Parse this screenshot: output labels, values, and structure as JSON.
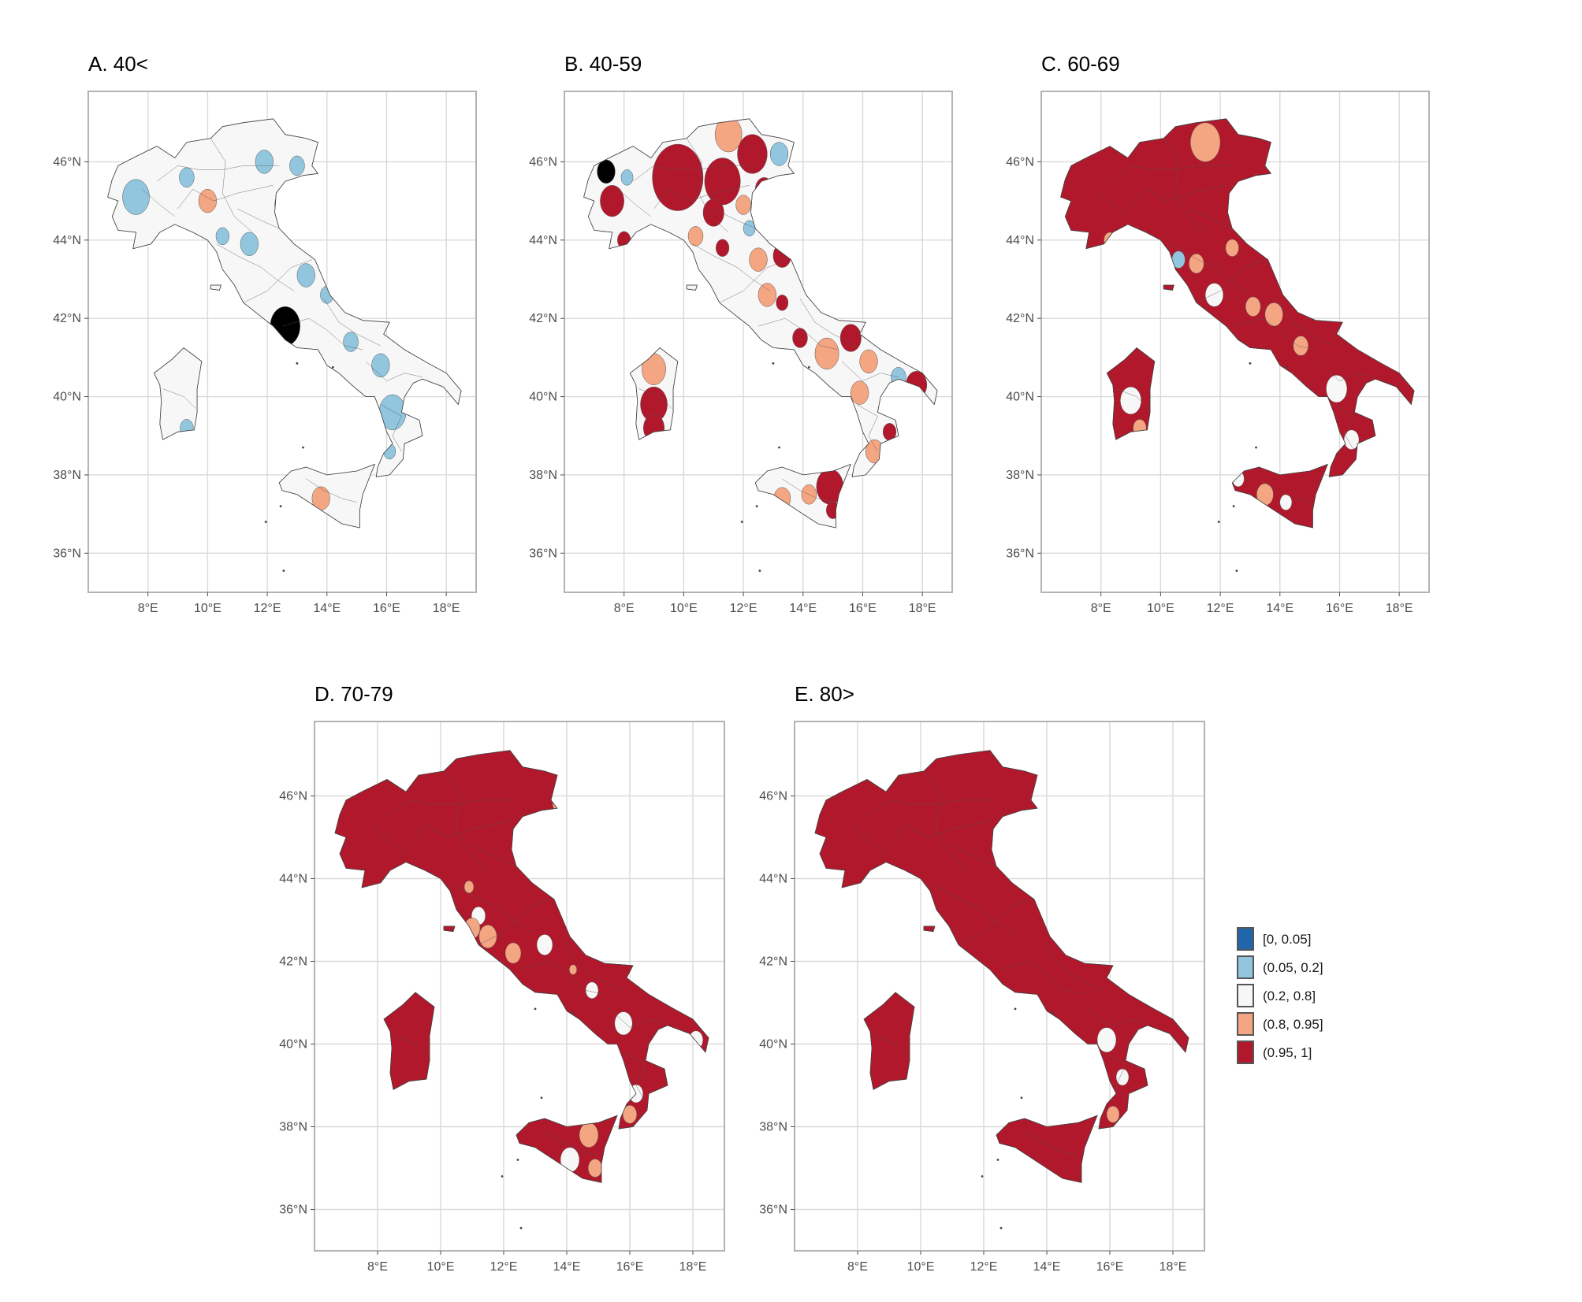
{
  "figure": {
    "panels": [
      {
        "id": "A",
        "title": "A. 40<",
        "base_class": "(0.2, 0.8]",
        "patches": [
          {
            "class": "(0.05, 0.2]",
            "lon": 7.6,
            "lat": 45.1,
            "r": 0.45
          },
          {
            "class": "(0.05, 0.2]",
            "lon": 9.3,
            "lat": 45.6,
            "r": 0.25
          },
          {
            "class": "(0.8, 0.95]",
            "lon": 10.0,
            "lat": 45.0,
            "r": 0.3
          },
          {
            "class": "(0.05, 0.2]",
            "lon": 11.9,
            "lat": 46.0,
            "r": 0.3
          },
          {
            "class": "(0.05, 0.2]",
            "lon": 13.0,
            "lat": 45.9,
            "r": 0.25
          },
          {
            "class": "(0.05, 0.2]",
            "lon": 12.6,
            "lat": 44.9,
            "r": 0.35
          },
          {
            "class": "(0.05, 0.2]",
            "lon": 10.5,
            "lat": 44.1,
            "r": 0.22
          },
          {
            "class": "(0.05, 0.2]",
            "lon": 11.4,
            "lat": 43.9,
            "r": 0.3
          },
          {
            "class": "(0.05, 0.2]",
            "lon": 13.3,
            "lat": 43.1,
            "r": 0.3
          },
          {
            "class": "(0.05, 0.2]",
            "lon": 14.0,
            "lat": 42.6,
            "r": 0.22
          },
          {
            "class": "(0, 0.05]",
            "lon": 12.6,
            "lat": 41.8,
            "r": 0.5
          },
          {
            "class": "(0.05, 0.2]",
            "lon": 14.8,
            "lat": 41.4,
            "r": 0.25
          },
          {
            "class": "(0.05, 0.2]",
            "lon": 15.8,
            "lat": 40.8,
            "r": 0.3
          },
          {
            "class": "(0.05, 0.2]",
            "lon": 16.2,
            "lat": 39.6,
            "r": 0.45
          },
          {
            "class": "(0.05, 0.2]",
            "lon": 16.1,
            "lat": 38.6,
            "r": 0.2
          },
          {
            "class": "(0.05, 0.2]",
            "lon": 9.3,
            "lat": 39.2,
            "r": 0.22
          },
          {
            "class": "(0.8, 0.95]",
            "lon": 13.8,
            "lat": 37.4,
            "r": 0.3
          }
        ]
      },
      {
        "id": "B",
        "title": "B. 40-59",
        "base_class": "(0.2, 0.8]",
        "patches": [
          {
            "class": "(0.95, 1]",
            "lon": 9.8,
            "lat": 45.6,
            "r": 0.85
          },
          {
            "class": "(0.95, 1]",
            "lon": 11.3,
            "lat": 45.5,
            "r": 0.6
          },
          {
            "class": "(0.95, 1]",
            "lon": 12.3,
            "lat": 46.2,
            "r": 0.5
          },
          {
            "class": "(0.8, 0.95]",
            "lon": 11.5,
            "lat": 46.7,
            "r": 0.45
          },
          {
            "class": "(0, 0.05]",
            "lon": 7.4,
            "lat": 45.75,
            "r": 0.3
          },
          {
            "class": "(0.05, 0.2]",
            "lon": 8.1,
            "lat": 45.6,
            "r": 0.2
          },
          {
            "class": "(0.95, 1]",
            "lon": 7.6,
            "lat": 45.0,
            "r": 0.4
          },
          {
            "class": "(0.05, 0.2]",
            "lon": 13.2,
            "lat": 46.2,
            "r": 0.3
          },
          {
            "class": "(0.95, 1]",
            "lon": 12.7,
            "lat": 45.3,
            "r": 0.3
          },
          {
            "class": "(0.8, 0.95]",
            "lon": 12.0,
            "lat": 44.9,
            "r": 0.25
          },
          {
            "class": "(0.95, 1]",
            "lon": 11.0,
            "lat": 44.7,
            "r": 0.35
          },
          {
            "class": "(0.05, 0.2]",
            "lon": 12.2,
            "lat": 44.3,
            "r": 0.2
          },
          {
            "class": "(0.8, 0.95]",
            "lon": 10.4,
            "lat": 44.1,
            "r": 0.25
          },
          {
            "class": "(0.95, 1]",
            "lon": 8.0,
            "lat": 44.0,
            "r": 0.22
          },
          {
            "class": "(0.95, 1]",
            "lon": 13.3,
            "lat": 43.6,
            "r": 0.3
          },
          {
            "class": "(0.8, 0.95]",
            "lon": 12.5,
            "lat": 43.5,
            "r": 0.3
          },
          {
            "class": "(0.95, 1]",
            "lon": 11.3,
            "lat": 43.8,
            "r": 0.22
          },
          {
            "class": "(0.8, 0.95]",
            "lon": 12.8,
            "lat": 42.6,
            "r": 0.3
          },
          {
            "class": "(0.95, 1]",
            "lon": 13.3,
            "lat": 42.4,
            "r": 0.2
          },
          {
            "class": "(0.95, 1]",
            "lon": 13.9,
            "lat": 41.5,
            "r": 0.25
          },
          {
            "class": "(0.95, 1]",
            "lon": 15.6,
            "lat": 41.5,
            "r": 0.35
          },
          {
            "class": "(0.8, 0.95]",
            "lon": 14.8,
            "lat": 41.1,
            "r": 0.4
          },
          {
            "class": "(0.8, 0.95]",
            "lon": 16.2,
            "lat": 40.9,
            "r": 0.3
          },
          {
            "class": "(0.95, 1]",
            "lon": 17.8,
            "lat": 40.3,
            "r": 0.35
          },
          {
            "class": "(0.05, 0.2]",
            "lon": 17.2,
            "lat": 40.5,
            "r": 0.25
          },
          {
            "class": "(0.8, 0.95]",
            "lon": 15.9,
            "lat": 40.1,
            "r": 0.3
          },
          {
            "class": "(0.95, 1]",
            "lon": 16.9,
            "lat": 39.1,
            "r": 0.22
          },
          {
            "class": "(0.8, 0.95]",
            "lon": 16.4,
            "lat": 38.6,
            "r": 0.3
          },
          {
            "class": "(0.95, 1]",
            "lon": 14.9,
            "lat": 37.7,
            "r": 0.45
          },
          {
            "class": "(0.95, 1]",
            "lon": 15.0,
            "lat": 37.1,
            "r": 0.22
          },
          {
            "class": "(0.8, 0.95]",
            "lon": 13.3,
            "lat": 37.4,
            "r": 0.28
          },
          {
            "class": "(0.8, 0.95]",
            "lon": 14.2,
            "lat": 37.5,
            "r": 0.25
          },
          {
            "class": "(0.8, 0.95]",
            "lon": 9.0,
            "lat": 40.7,
            "r": 0.4
          },
          {
            "class": "(0.95, 1]",
            "lon": 9.0,
            "lat": 39.8,
            "r": 0.45
          },
          {
            "class": "(0.95, 1]",
            "lon": 9.0,
            "lat": 39.2,
            "r": 0.35
          }
        ]
      },
      {
        "id": "C",
        "title": "C. 60-69",
        "base_class": "(0.95, 1]",
        "patches": [
          {
            "class": "(0.8, 0.95]",
            "lon": 11.5,
            "lat": 46.5,
            "r": 0.5
          },
          {
            "class": "(0.2, 0.8]",
            "lon": 12.5,
            "lat": 44.8,
            "r": 0.25
          },
          {
            "class": "(0.05, 0.2]",
            "lon": 10.6,
            "lat": 43.5,
            "r": 0.22
          },
          {
            "class": "(0.8, 0.95]",
            "lon": 11.2,
            "lat": 43.4,
            "r": 0.25
          },
          {
            "class": "(0.8, 0.95]",
            "lon": 12.4,
            "lat": 43.8,
            "r": 0.22
          },
          {
            "class": "(0.8, 0.95]",
            "lon": 13.1,
            "lat": 42.3,
            "r": 0.25
          },
          {
            "class": "(0.8, 0.95]",
            "lon": 13.8,
            "lat": 42.1,
            "r": 0.3
          },
          {
            "class": "(0.8, 0.95]",
            "lon": 8.3,
            "lat": 44.0,
            "r": 0.2
          },
          {
            "class": "(0.2, 0.8]",
            "lon": 11.8,
            "lat": 42.6,
            "r": 0.3
          },
          {
            "class": "(0.8, 0.95]",
            "lon": 14.7,
            "lat": 41.3,
            "r": 0.25
          },
          {
            "class": "(0.2, 0.8]",
            "lon": 15.9,
            "lat": 40.2,
            "r": 0.35
          },
          {
            "class": "(0.2, 0.8]",
            "lon": 16.4,
            "lat": 38.9,
            "r": 0.25
          },
          {
            "class": "(0.2, 0.8]",
            "lon": 9.0,
            "lat": 39.9,
            "r": 0.35
          },
          {
            "class": "(0.8, 0.95]",
            "lon": 9.3,
            "lat": 39.2,
            "r": 0.22
          },
          {
            "class": "(0.8, 0.95]",
            "lon": 13.5,
            "lat": 37.5,
            "r": 0.28
          },
          {
            "class": "(0.2, 0.8]",
            "lon": 12.6,
            "lat": 37.9,
            "r": 0.2
          },
          {
            "class": "(0.2, 0.8]",
            "lon": 14.2,
            "lat": 37.3,
            "r": 0.2
          }
        ]
      },
      {
        "id": "D",
        "title": "D. 70-79",
        "base_class": "(0.95, 1]",
        "patches": [
          {
            "class": "(0.8, 0.95]",
            "lon": 13.7,
            "lat": 45.8,
            "r": 0.15
          },
          {
            "class": "(0.8, 0.95]",
            "lon": 10.9,
            "lat": 43.8,
            "r": 0.15
          },
          {
            "class": "(0.2, 0.8]",
            "lon": 11.2,
            "lat": 43.1,
            "r": 0.22
          },
          {
            "class": "(0.8, 0.95]",
            "lon": 11.0,
            "lat": 42.8,
            "r": 0.25
          },
          {
            "class": "(0.8, 0.95]",
            "lon": 11.5,
            "lat": 42.6,
            "r": 0.28
          },
          {
            "class": "(0.8, 0.95]",
            "lon": 12.3,
            "lat": 42.2,
            "r": 0.25
          },
          {
            "class": "(0.2, 0.8]",
            "lon": 13.3,
            "lat": 42.4,
            "r": 0.25
          },
          {
            "class": "(0.8, 0.95]",
            "lon": 14.2,
            "lat": 41.8,
            "r": 0.12
          },
          {
            "class": "(0.2, 0.8]",
            "lon": 14.8,
            "lat": 41.3,
            "r": 0.2
          },
          {
            "class": "(0.2, 0.8]",
            "lon": 15.8,
            "lat": 40.5,
            "r": 0.28
          },
          {
            "class": "(0.2, 0.8]",
            "lon": 18.1,
            "lat": 40.1,
            "r": 0.22
          },
          {
            "class": "(0.2, 0.8]",
            "lon": 16.2,
            "lat": 38.8,
            "r": 0.22
          },
          {
            "class": "(0.8, 0.95]",
            "lon": 16.0,
            "lat": 38.3,
            "r": 0.22
          },
          {
            "class": "(0.8, 0.95]",
            "lon": 14.7,
            "lat": 37.8,
            "r": 0.3
          },
          {
            "class": "(0.2, 0.8]",
            "lon": 14.1,
            "lat": 37.2,
            "r": 0.3
          },
          {
            "class": "(0.8, 0.95]",
            "lon": 14.9,
            "lat": 37.0,
            "r": 0.22
          }
        ]
      },
      {
        "id": "E",
        "title": "E. 80>",
        "base_class": "(0.95, 1]",
        "patches": [
          {
            "class": "(0.2, 0.8]",
            "lon": 15.9,
            "lat": 40.1,
            "r": 0.3
          },
          {
            "class": "(0.2, 0.8]",
            "lon": 16.4,
            "lat": 39.2,
            "r": 0.2
          },
          {
            "class": "(0.8, 0.95]",
            "lon": 16.1,
            "lat": 38.3,
            "r": 0.2
          }
        ]
      }
    ],
    "axes": {
      "x_ticks": [
        8,
        10,
        12,
        14,
        16,
        18
      ],
      "y_ticks": [
        36,
        38,
        40,
        42,
        44,
        46
      ],
      "x_tick_labels": [
        "8°E",
        "10°E",
        "12°E",
        "14°E",
        "16°E",
        "18°E"
      ],
      "y_tick_labels": [
        "36°N",
        "38°N",
        "40°N",
        "42°N",
        "44°N",
        "46°N"
      ],
      "xlim": [
        6.0,
        19.0
      ],
      "ylim": [
        35.0,
        47.8
      ]
    },
    "legend": {
      "items": [
        {
          "label": "[0, 0.05]",
          "color": "#2166ac"
        },
        {
          "label": "(0.05, 0.2]",
          "color": "#92c5de"
        },
        {
          "label": "(0.2, 0.8]",
          "color": "#f7f7f7"
        },
        {
          "label": "(0.8, 0.95]",
          "color": "#f4a582"
        },
        {
          "label": "(0.95, 1]",
          "color": "#b2182b"
        }
      ]
    }
  }
}
